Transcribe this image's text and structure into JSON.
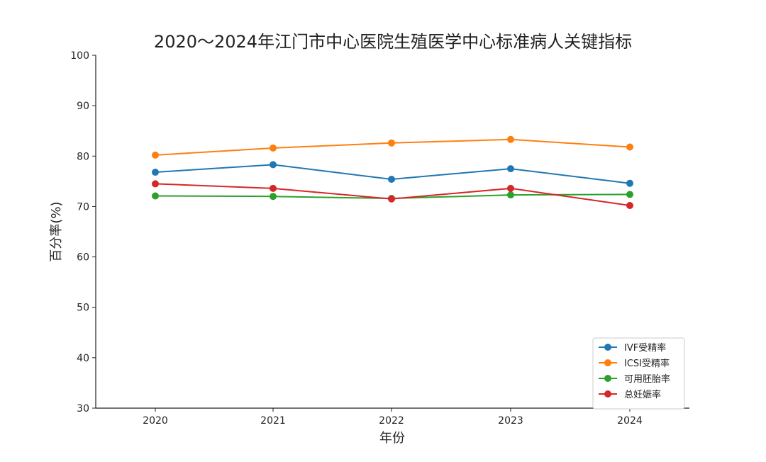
{
  "chart_data": {
    "type": "line",
    "title": "2020～2024年江门市中心医院生殖医学中心标准病人关键指标",
    "xlabel": "年份",
    "ylabel": "百分率(%)",
    "categories": [
      "2020",
      "2021",
      "2022",
      "2023",
      "2024"
    ],
    "ylim": [
      30,
      100
    ],
    "yticks": [
      30,
      40,
      50,
      60,
      70,
      80,
      90,
      100
    ],
    "grid": false,
    "legend_position": "bottom-right",
    "series": [
      {
        "name": "IVF受精率",
        "color": "#1f77b4",
        "values": [
          76.8,
          78.3,
          75.4,
          77.5,
          74.6
        ]
      },
      {
        "name": "ICSI受精率",
        "color": "#ff7f0e",
        "values": [
          80.2,
          81.6,
          82.6,
          83.3,
          81.8
        ]
      },
      {
        "name": "可用胚胎率",
        "color": "#2ca02c",
        "values": [
          72.1,
          72.0,
          71.6,
          72.3,
          72.4
        ]
      },
      {
        "name": "总妊娠率",
        "color": "#d62728",
        "values": [
          74.5,
          73.6,
          71.5,
          73.6,
          70.2
        ]
      }
    ]
  }
}
